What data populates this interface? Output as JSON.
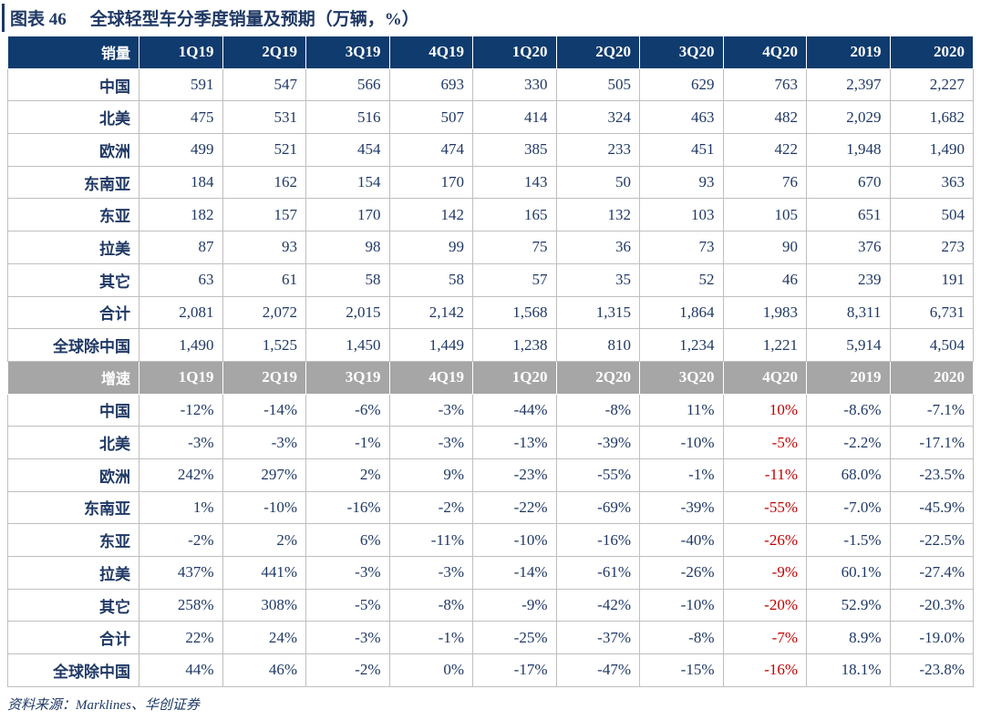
{
  "page": {
    "title_label": "图表 46",
    "title_text": "全球轻型车分季度销量及预期（万辆，%）",
    "source_note": "资料来源：Marklines、华创证券"
  },
  "colors": {
    "navy_header_bg": "#0F3B6E",
    "gray_header_bg": "#A6A6A6",
    "body_text": "#1F3864",
    "highlight_red": "#C00000",
    "grid_line": "#BFBFBF"
  },
  "table": {
    "quarter_columns": [
      "1Q19",
      "2Q19",
      "3Q19",
      "4Q19",
      "1Q20",
      "2Q20",
      "3Q20",
      "4Q20",
      "2019",
      "2020"
    ],
    "highlight_column_index": 7,
    "sections": [
      {
        "header_label": "销量",
        "style": "navy",
        "highlight": false,
        "rows": [
          {
            "label": "中国",
            "values": [
              "591",
              "547",
              "566",
              "693",
              "330",
              "505",
              "629",
              "763",
              "2,397",
              "2,227"
            ]
          },
          {
            "label": "北美",
            "values": [
              "475",
              "531",
              "516",
              "507",
              "414",
              "324",
              "463",
              "482",
              "2,029",
              "1,682"
            ]
          },
          {
            "label": "欧洲",
            "values": [
              "499",
              "521",
              "454",
              "474",
              "385",
              "233",
              "451",
              "422",
              "1,948",
              "1,490"
            ]
          },
          {
            "label": "东南亚",
            "values": [
              "184",
              "162",
              "154",
              "170",
              "143",
              "50",
              "93",
              "76",
              "670",
              "363"
            ]
          },
          {
            "label": "东亚",
            "values": [
              "182",
              "157",
              "170",
              "142",
              "165",
              "132",
              "103",
              "105",
              "651",
              "504"
            ]
          },
          {
            "label": "拉美",
            "values": [
              "87",
              "93",
              "98",
              "99",
              "75",
              "36",
              "73",
              "90",
              "376",
              "273"
            ]
          },
          {
            "label": "其它",
            "values": [
              "63",
              "61",
              "58",
              "58",
              "57",
              "35",
              "52",
              "46",
              "239",
              "191"
            ]
          },
          {
            "label": "合计",
            "values": [
              "2,081",
              "2,072",
              "2,015",
              "2,142",
              "1,568",
              "1,315",
              "1,864",
              "1,983",
              "8,311",
              "6,731"
            ]
          },
          {
            "label": "全球除中国",
            "values": [
              "1,490",
              "1,525",
              "1,450",
              "1,449",
              "1,238",
              "810",
              "1,234",
              "1,221",
              "5,914",
              "4,504"
            ]
          }
        ]
      },
      {
        "header_label": "增速",
        "style": "gray",
        "highlight": true,
        "rows": [
          {
            "label": "中国",
            "values": [
              "-12%",
              "-14%",
              "-6%",
              "-3%",
              "-44%",
              "-8%",
              "11%",
              "10%",
              "-8.6%",
              "-7.1%"
            ]
          },
          {
            "label": "北美",
            "values": [
              "-3%",
              "-3%",
              "-1%",
              "-3%",
              "-13%",
              "-39%",
              "-10%",
              "-5%",
              "-2.2%",
              "-17.1%"
            ]
          },
          {
            "label": "欧洲",
            "values": [
              "242%",
              "297%",
              "2%",
              "9%",
              "-23%",
              "-55%",
              "-1%",
              "-11%",
              "68.0%",
              "-23.5%"
            ]
          },
          {
            "label": "东南亚",
            "values": [
              "1%",
              "-10%",
              "-16%",
              "-2%",
              "-22%",
              "-69%",
              "-39%",
              "-55%",
              "-7.0%",
              "-45.9%"
            ]
          },
          {
            "label": "东亚",
            "values": [
              "-2%",
              "2%",
              "6%",
              "-11%",
              "-10%",
              "-16%",
              "-40%",
              "-26%",
              "-1.5%",
              "-22.5%"
            ]
          },
          {
            "label": "拉美",
            "values": [
              "437%",
              "441%",
              "-3%",
              "-3%",
              "-14%",
              "-61%",
              "-26%",
              "-9%",
              "60.1%",
              "-27.4%"
            ]
          },
          {
            "label": "其它",
            "values": [
              "258%",
              "308%",
              "-5%",
              "-8%",
              "-9%",
              "-42%",
              "-10%",
              "-20%",
              "52.9%",
              "-20.3%"
            ]
          },
          {
            "label": "合计",
            "values": [
              "22%",
              "24%",
              "-3%",
              "-1%",
              "-25%",
              "-37%",
              "-8%",
              "-7%",
              "8.9%",
              "-19.0%"
            ]
          },
          {
            "label": "全球除中国",
            "values": [
              "44%",
              "46%",
              "-2%",
              "0%",
              "-17%",
              "-47%",
              "-15%",
              "-16%",
              "18.1%",
              "-23.8%"
            ]
          }
        ]
      }
    ]
  }
}
